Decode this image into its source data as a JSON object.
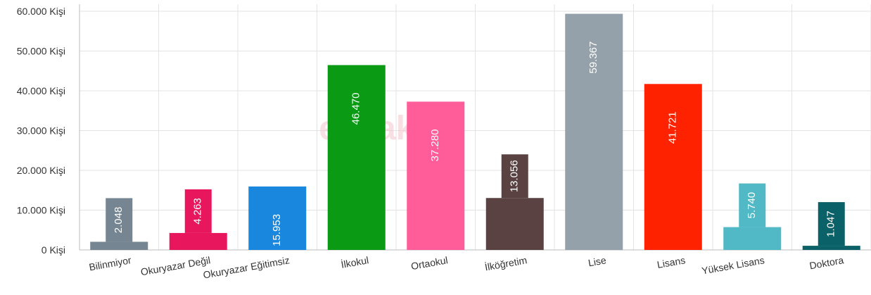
{
  "chart_data": {
    "type": "bar",
    "categories": [
      "Bilinmiyor",
      "Okuryazar Değil",
      "Okuryazar Eğitimsiz",
      "İlkokul",
      "Ortaokul",
      "İlköğretim",
      "Lise",
      "Lisans",
      "Yüksek Lisans",
      "Doktora"
    ],
    "values": [
      2048,
      4263,
      15953,
      46470,
      37280,
      13056,
      59367,
      41721,
      5740,
      1047
    ],
    "data_labels": [
      "2.048",
      "4.263",
      "15.953",
      "46.470",
      "37.280",
      "13.056",
      "59.367",
      "41.721",
      "5.740",
      "1.047"
    ],
    "colors": [
      "#758592",
      "#e8175d",
      "#1a87de",
      "#0a9a14",
      "#ff5c9a",
      "#5a4242",
      "#95a1aa",
      "#ff2200",
      "#51b9c5",
      "#0a6168"
    ],
    "y_ticks": [
      0,
      10000,
      20000,
      30000,
      40000,
      50000,
      60000
    ],
    "y_tick_labels": [
      "0 Kişi",
      "10.000 Kişi",
      "20.000 Kişi",
      "30.000 Kişi",
      "40.000 Kişi",
      "50.000 Kişi",
      "60.000 Kişi"
    ],
    "ylim": [
      0,
      60000
    ],
    "grid": true,
    "title": "",
    "xlabel": "",
    "ylabel": "",
    "watermark": "emlaksa"
  }
}
